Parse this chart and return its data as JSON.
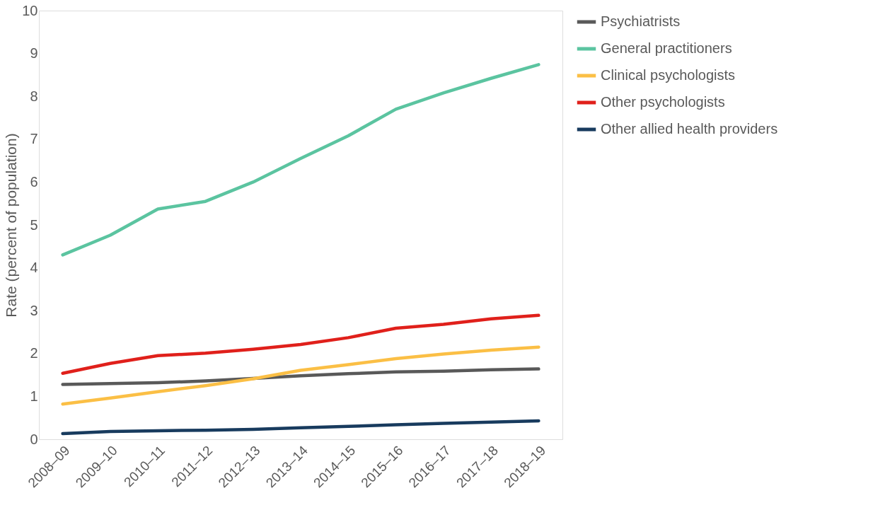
{
  "chart_data": {
    "type": "line",
    "ylabel": "Rate (percent of population)",
    "categories": [
      "2008–09",
      "2009–10",
      "2010–11",
      "2011–12",
      "2012–13",
      "2013–14",
      "2014–15",
      "2015–16",
      "2016–17",
      "2017–18",
      "2018–19"
    ],
    "series": [
      {
        "name": "Psychiatrists",
        "color": "#595959",
        "values": [
          1.28,
          1.3,
          1.32,
          1.36,
          1.42,
          1.48,
          1.53,
          1.57,
          1.59,
          1.62,
          1.64
        ]
      },
      {
        "name": "General practitioners",
        "color": "#5bc4a0",
        "values": [
          4.3,
          4.76,
          5.37,
          5.55,
          6.0,
          6.55,
          7.08,
          7.7,
          8.08,
          8.42,
          8.74
        ]
      },
      {
        "name": "Clinical psychologists",
        "color": "#fbbf45",
        "values": [
          0.82,
          0.96,
          1.11,
          1.25,
          1.41,
          1.61,
          1.74,
          1.88,
          1.99,
          2.08,
          2.15
        ]
      },
      {
        "name": "Other psychologists",
        "color": "#e0201b",
        "values": [
          1.54,
          1.77,
          1.95,
          2.01,
          2.1,
          2.21,
          2.37,
          2.59,
          2.68,
          2.81,
          2.89
        ]
      },
      {
        "name": "Other allied health providers",
        "color": "#183b5e",
        "values": [
          0.13,
          0.18,
          0.2,
          0.21,
          0.23,
          0.27,
          0.3,
          0.34,
          0.37,
          0.4,
          0.43
        ]
      }
    ],
    "ylim": [
      0,
      10
    ],
    "yticks": [
      0,
      1,
      2,
      3,
      4,
      5,
      6,
      7,
      8,
      9,
      10
    ],
    "grid": false,
    "legend": "right",
    "marker": "none",
    "line_style": "solid"
  }
}
